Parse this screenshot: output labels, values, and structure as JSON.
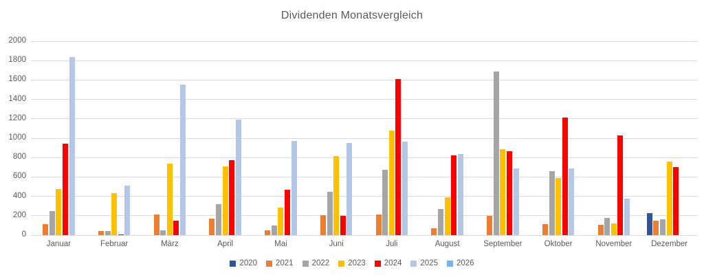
{
  "title": "Dividenden Monatsvergleich",
  "colors": {
    "text": "#595959",
    "grid": "#d9d9d9",
    "background": "#ffffff"
  },
  "chart_data": {
    "type": "bar",
    "title": "Dividenden Monatsvergleich",
    "xlabel": "",
    "ylabel": "",
    "ylim": [
      0,
      2000
    ],
    "ytick_step": 200,
    "yticks": [
      0,
      200,
      400,
      600,
      800,
      1000,
      1200,
      1400,
      1600,
      1800,
      2000
    ],
    "grid": true,
    "legend_position": "bottom",
    "categories": [
      "Januar",
      "Februar",
      "März",
      "April",
      "Mai",
      "Juni",
      "Juli",
      "August",
      "September",
      "Oktober",
      "November",
      "Dezember"
    ],
    "series": [
      {
        "name": "2020",
        "color": "#2F5597",
        "values": [
          null,
          null,
          null,
          null,
          null,
          null,
          null,
          null,
          null,
          null,
          null,
          230
        ]
      },
      {
        "name": "2021",
        "color": "#ED7D31",
        "values": [
          110,
          45,
          210,
          170,
          50,
          205,
          210,
          70,
          200,
          110,
          105,
          150
        ]
      },
      {
        "name": "2022",
        "color": "#A5A5A5",
        "values": [
          250,
          40,
          50,
          320,
          100,
          445,
          675,
          270,
          1690,
          660,
          180,
          165
        ]
      },
      {
        "name": "2023",
        "color": "#FFC000",
        "values": [
          475,
          430,
          740,
          710,
          285,
          815,
          1080,
          390,
          890,
          590,
          120,
          760
        ]
      },
      {
        "name": "2024",
        "color": "#FF0000",
        "values": [
          945,
          10,
          150,
          775,
          470,
          200,
          1610,
          820,
          865,
          1210,
          1030,
          700
        ]
      },
      {
        "name": "2025",
        "color": "#B4C7E7",
        "values": [
          1840,
          510,
          1550,
          1195,
          975,
          950,
          965,
          840,
          690,
          690,
          375,
          null
        ]
      },
      {
        "name": "2026",
        "color": "#74B5F0",
        "values": [
          null,
          null,
          null,
          null,
          null,
          null,
          null,
          null,
          null,
          null,
          null,
          null
        ]
      }
    ]
  }
}
